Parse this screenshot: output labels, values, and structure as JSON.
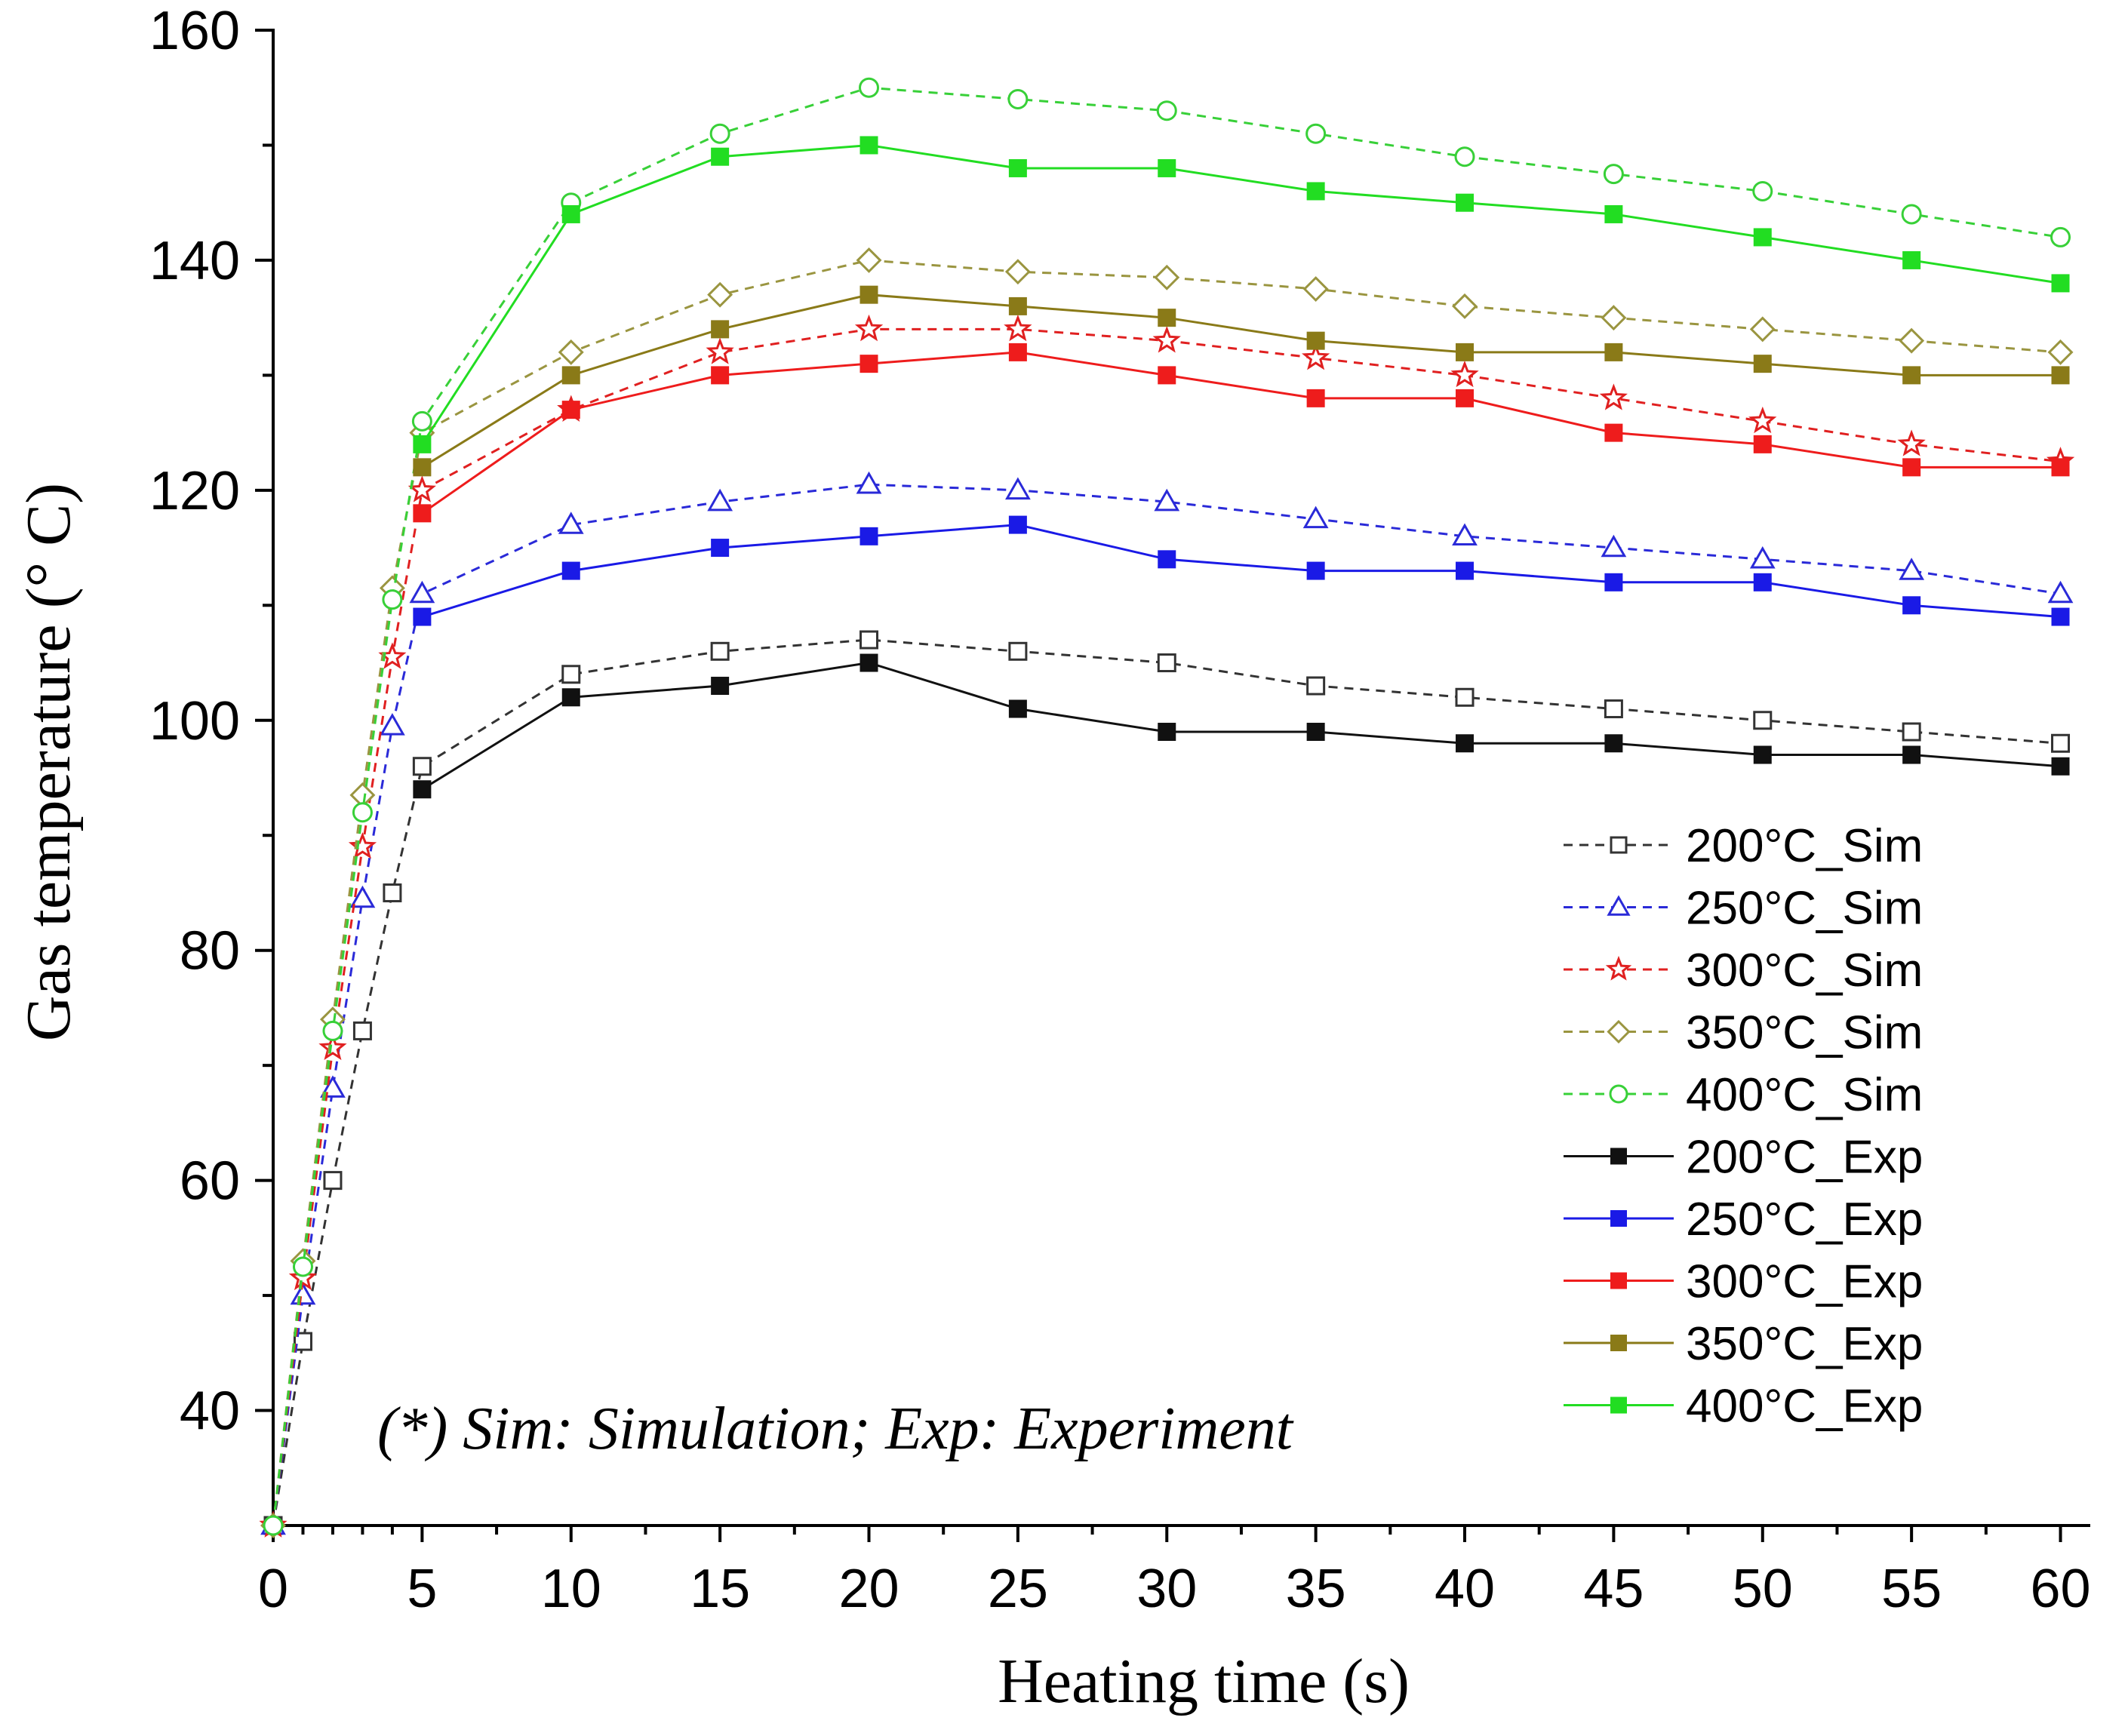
{
  "chart_data": {
    "type": "line",
    "title": "",
    "xlabel": "Heating time (s)",
    "ylabel": "Gas temperature (° C)",
    "xlim": [
      0,
      61
    ],
    "ylim": [
      30,
      160
    ],
    "xticks": [
      "0",
      "5",
      "10",
      "15",
      "20",
      "25",
      "30",
      "35",
      "40",
      "45",
      "50",
      "55",
      "60"
    ],
    "yticks": [
      "40",
      "60",
      "80",
      "100",
      "120",
      "140",
      "160"
    ],
    "annotation": "(*) Sim: Simulation; Exp: Experiment",
    "legend_position": "center-right",
    "series": [
      {
        "name": "200°C_Sim",
        "color": "#333333",
        "dash": true,
        "marker": "square-open",
        "x": [
          0,
          1,
          2,
          3,
          4,
          5,
          10,
          15,
          20,
          25,
          30,
          35,
          40,
          45,
          50,
          55,
          60
        ],
        "y": [
          30,
          46,
          60,
          73,
          85,
          96,
          104,
          106,
          107,
          106,
          105,
          103,
          102,
          101,
          100,
          99,
          98
        ]
      },
      {
        "name": "250°C_Sim",
        "color": "#2a2ad8",
        "dash": true,
        "marker": "triangle-open",
        "x": [
          0,
          1,
          2,
          3,
          4,
          5,
          10,
          15,
          20,
          25,
          30,
          35,
          40,
          45,
          50,
          55,
          60
        ],
        "y": [
          30,
          50,
          68,
          84.5,
          99.5,
          111,
          117,
          119,
          120.5,
          120,
          119,
          117.5,
          116,
          115,
          114,
          113,
          111
        ]
      },
      {
        "name": "300°C_Sim",
        "color": "#e02020",
        "dash": true,
        "marker": "star-open",
        "x": [
          0,
          1,
          2,
          3,
          4,
          5,
          10,
          15,
          20,
          25,
          30,
          35,
          40,
          45,
          50,
          55,
          60
        ],
        "y": [
          30,
          51.5,
          71.5,
          89,
          105.5,
          120,
          127,
          132,
          134,
          134,
          133,
          131.5,
          130,
          128,
          126,
          124,
          122.5
        ]
      },
      {
        "name": "350°C_Sim",
        "color": "#9a9540",
        "dash": true,
        "marker": "diamond-open",
        "x": [
          0,
          1,
          2,
          3,
          4,
          5,
          10,
          15,
          20,
          25,
          30,
          35,
          40,
          45,
          50,
          55,
          60
        ],
        "y": [
          30,
          53,
          74,
          93.5,
          111.5,
          125,
          132,
          137,
          140,
          139,
          138.5,
          137.5,
          136,
          135,
          134,
          133,
          132
        ]
      },
      {
        "name": "400°C_Sim",
        "color": "#38d038",
        "dash": true,
        "marker": "circle-open",
        "x": [
          0,
          1,
          2,
          3,
          4,
          5,
          10,
          15,
          20,
          25,
          30,
          35,
          40,
          45,
          50,
          55,
          60
        ],
        "y": [
          30,
          52.5,
          73,
          92,
          110.5,
          126,
          145,
          151,
          155,
          154,
          153,
          151,
          149,
          147.5,
          146,
          144,
          142
        ]
      },
      {
        "name": "200°C_Exp",
        "color": "#111111",
        "dash": false,
        "marker": "square-filled",
        "x": [
          5,
          10,
          15,
          20,
          25,
          30,
          35,
          40,
          45,
          50,
          55,
          60
        ],
        "y": [
          94,
          102,
          103,
          105,
          101,
          99,
          99,
          98,
          98,
          97,
          97,
          96
        ]
      },
      {
        "name": "250°C_Exp",
        "color": "#1a1ae6",
        "dash": false,
        "marker": "square-filled",
        "x": [
          5,
          10,
          15,
          20,
          25,
          30,
          35,
          40,
          45,
          50,
          55,
          60
        ],
        "y": [
          109,
          113,
          115,
          116,
          117,
          114,
          113,
          113,
          112,
          112,
          110,
          109
        ]
      },
      {
        "name": "300°C_Exp",
        "color": "#ee1c1c",
        "dash": false,
        "marker": "square-filled",
        "x": [
          5,
          10,
          15,
          20,
          25,
          30,
          35,
          40,
          45,
          50,
          55,
          60
        ],
        "y": [
          118,
          127,
          130,
          131,
          132,
          130,
          128,
          128,
          125,
          124,
          122,
          122
        ]
      },
      {
        "name": "350°C_Exp",
        "color": "#8a7a18",
        "dash": false,
        "marker": "square-filled",
        "x": [
          5,
          10,
          15,
          20,
          25,
          30,
          35,
          40,
          45,
          50,
          55,
          60
        ],
        "y": [
          122,
          130,
          134,
          137,
          136,
          135,
          133,
          132,
          132,
          131,
          130,
          130
        ]
      },
      {
        "name": "400°C_Exp",
        "color": "#22dd22",
        "dash": false,
        "marker": "square-filled",
        "x": [
          5,
          10,
          15,
          20,
          25,
          30,
          35,
          40,
          45,
          50,
          55,
          60
        ],
        "y": [
          124,
          144,
          149,
          150,
          148,
          148,
          146,
          145,
          144,
          142,
          140,
          138
        ]
      }
    ]
  }
}
